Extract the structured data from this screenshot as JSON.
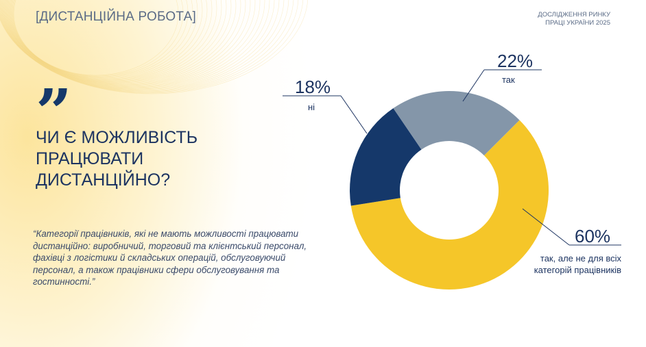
{
  "header": {
    "section": "[ДИСТАНЦІЙНА РОБОТА]",
    "brand_line1": "ДОСЛІДЖЕННЯ РИНКУ",
    "brand_line2": "ПРАЦІ УКРАЇНИ 2025"
  },
  "quote_icon": "closing-quote-icon",
  "title_lines": [
    "ЧИ Є МОЖЛИВІСТЬ",
    "ПРАЦЮВАТИ",
    "ДИСТАНЦІЙНО?"
  ],
  "quote_text": "“Категорії працівників, які не мають можливості працювати дистанційно: виробничий, торговий та клієнтський персонал, фахівці з логістики й складських операцій, обслуговуючий персонал, а також працівники сфери обслуговування та гостинності.”",
  "chart_data": {
    "type": "pie",
    "subtype": "donut",
    "title": "ЧИ Є МОЖЛИВІСТЬ ПРАЦЮВАТИ ДИСТАНЦІЙНО?",
    "slices": [
      {
        "label": "так, але не для всіх категорій працівників",
        "label_line1": "так, але не для всіх",
        "label_line2": "категорій працівників",
        "value": 60,
        "display": "60%",
        "color": "#f5c629"
      },
      {
        "label": "ні",
        "value": 18,
        "display": "18%",
        "color": "#15386a"
      },
      {
        "label": "так",
        "value": 22,
        "display": "22%",
        "color": "#8496a9"
      }
    ]
  }
}
